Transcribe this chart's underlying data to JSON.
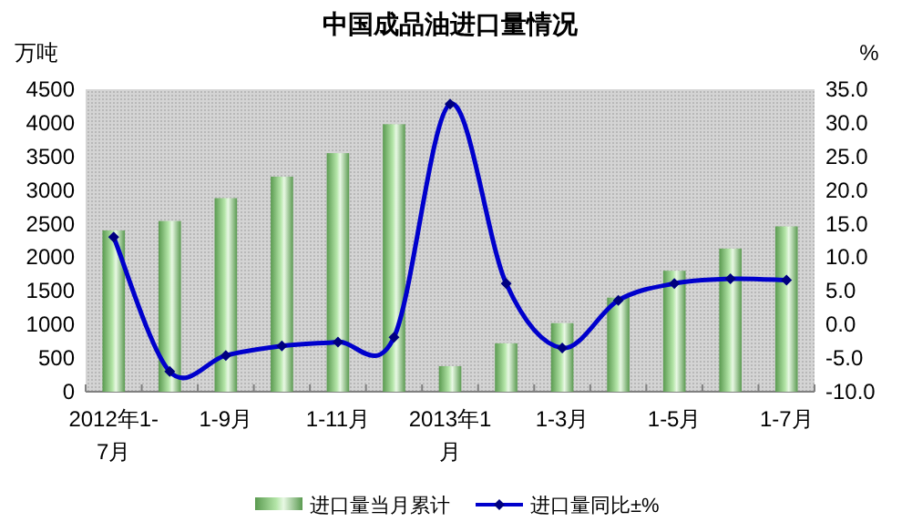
{
  "chart_data": {
    "type": "bar",
    "title": "中国成品油进口量情况",
    "ylabel": "万吨",
    "y2label": "%",
    "categories": [
      "2012年1-7月",
      null,
      "1-9月",
      null,
      "1-11月",
      null,
      "2013年1月",
      null,
      "1-3月",
      null,
      "1-5月",
      null,
      "1-7月"
    ],
    "series": [
      {
        "name": "进口量当月累计",
        "color": "#b5e6a9",
        "values": [
          2400,
          2540,
          2880,
          3200,
          3550,
          3980,
          380,
          720,
          1020,
          1400,
          1800,
          2130,
          2460
        ]
      },
      {
        "name": "进口量同比±%",
        "type": "line",
        "axis": "y2",
        "color": "#0000cc",
        "marker": "diamond",
        "values": [
          13.0,
          -7.0,
          -4.6,
          -3.2,
          -2.6,
          -1.9,
          32.8,
          6.1,
          -3.5,
          3.6,
          6.1,
          6.8,
          6.6
        ]
      }
    ],
    "ylim": [
      0,
      4500
    ],
    "yticks": [
      0,
      500,
      1000,
      1500,
      2000,
      2500,
      3000,
      3500,
      4000,
      4500
    ],
    "y2lim": [
      -10,
      35
    ],
    "y2ticks": [
      {
        "value": -10,
        "label": "-10.0"
      },
      {
        "value": -5,
        "label": "-5.0"
      },
      {
        "value": 0,
        "label": "0.0"
      },
      {
        "value": 5,
        "label": "5.0"
      },
      {
        "value": 10,
        "label": "10.0"
      },
      {
        "value": 15,
        "label": "15.0"
      },
      {
        "value": 20,
        "label": "20.0"
      },
      {
        "value": 25,
        "label": "25.0"
      },
      {
        "value": 30,
        "label": "30.0"
      },
      {
        "value": 35,
        "label": "35.0"
      }
    ],
    "grid": false,
    "legend": "bottom"
  }
}
